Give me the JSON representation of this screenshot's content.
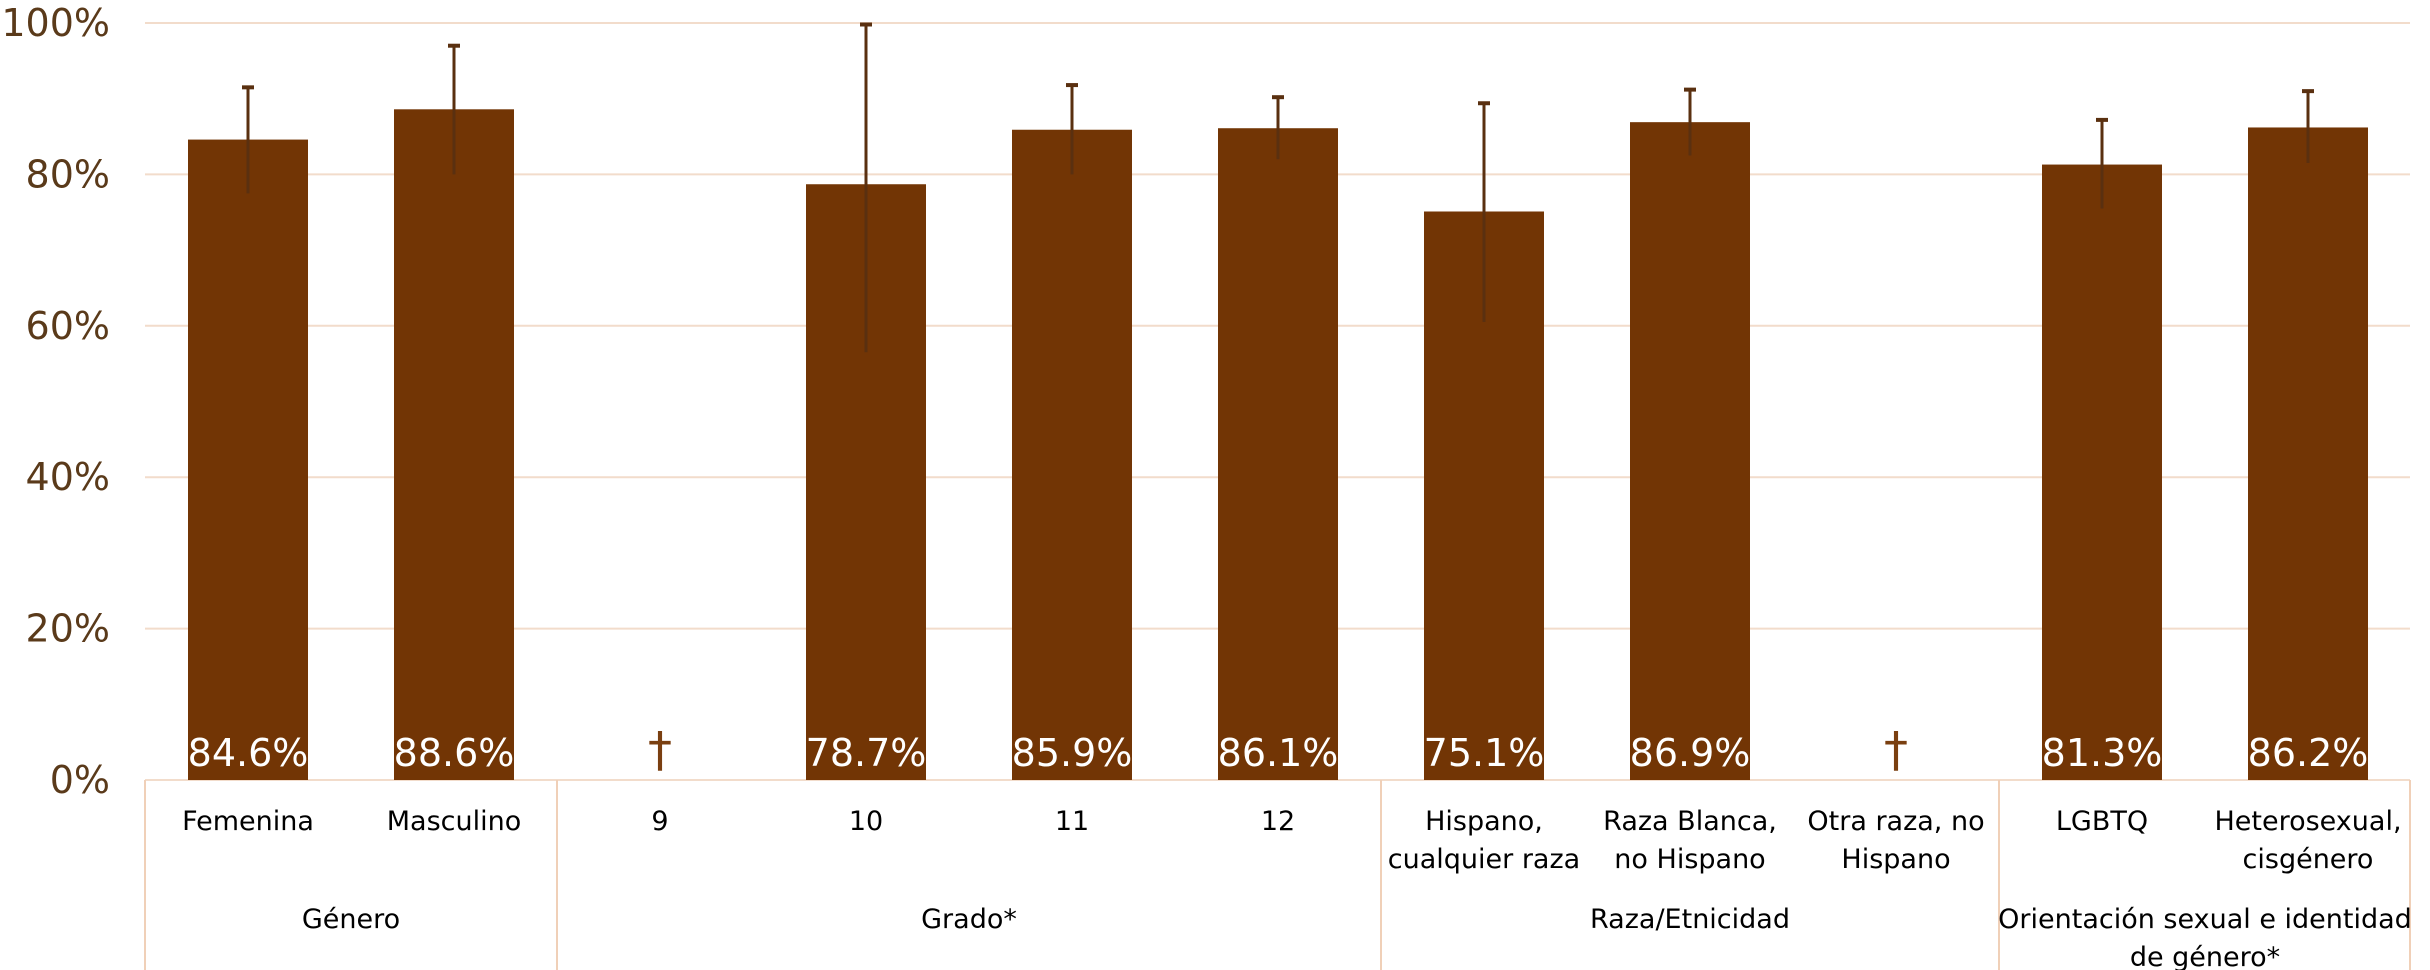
{
  "chart_data": {
    "type": "bar",
    "ylim": [
      0,
      100
    ],
    "y_ticks": [
      "0%",
      "20%",
      "40%",
      "60%",
      "80%",
      "100%"
    ],
    "grid": true,
    "colors": {
      "bar": "#723505",
      "error": "#5a3010",
      "grid": "#f2dccb",
      "axis_text": "#5a3a1a",
      "dagger": "#7a3f10"
    },
    "categories": [
      {
        "label": [
          "Femenina"
        ],
        "value": 84.6,
        "err_low": 77.5,
        "err_high": 91.5,
        "value_label": "84.6%"
      },
      {
        "label": [
          "Masculino"
        ],
        "value": 88.6,
        "err_low": 80.0,
        "err_high": 97.0,
        "value_label": "88.6%"
      },
      {
        "label": [
          "9"
        ],
        "value": null,
        "value_label": "†"
      },
      {
        "label": [
          "10"
        ],
        "value": 78.7,
        "err_low": 56.5,
        "err_high": 99.8,
        "value_label": "78.7%"
      },
      {
        "label": [
          "11"
        ],
        "value": 85.9,
        "err_low": 80.0,
        "err_high": 91.8,
        "value_label": "85.9%"
      },
      {
        "label": [
          "12"
        ],
        "value": 86.1,
        "err_low": 82.0,
        "err_high": 90.2,
        "value_label": "86.1%"
      },
      {
        "label": [
          "Hispano,",
          "cualquier raza"
        ],
        "value": 75.1,
        "err_low": 60.5,
        "err_high": 89.4,
        "value_label": "75.1%"
      },
      {
        "label": [
          "Raza Blanca,",
          "no Hispano"
        ],
        "value": 86.9,
        "err_low": 82.5,
        "err_high": 91.2,
        "value_label": "86.9%"
      },
      {
        "label": [
          "Otra raza, no",
          "Hispano"
        ],
        "value": null,
        "value_label": "†"
      },
      {
        "label": [
          "LGBTQ"
        ],
        "value": 81.3,
        "err_low": 75.5,
        "err_high": 87.2,
        "value_label": "81.3%"
      },
      {
        "label": [
          "Heterosexual,",
          "cisgénero"
        ],
        "value": 86.2,
        "err_low": 81.5,
        "err_high": 91.0,
        "value_label": "86.2%"
      }
    ],
    "groups": [
      {
        "label": [
          "Género"
        ],
        "start": 0,
        "end": 1
      },
      {
        "label": [
          "Grado*"
        ],
        "start": 2,
        "end": 5
      },
      {
        "label": [
          "Raza/Etnicidad"
        ],
        "start": 6,
        "end": 8
      },
      {
        "label": [
          "Orientación sexual e identidad",
          "de género*"
        ],
        "start": 9,
        "end": 10
      }
    ]
  }
}
